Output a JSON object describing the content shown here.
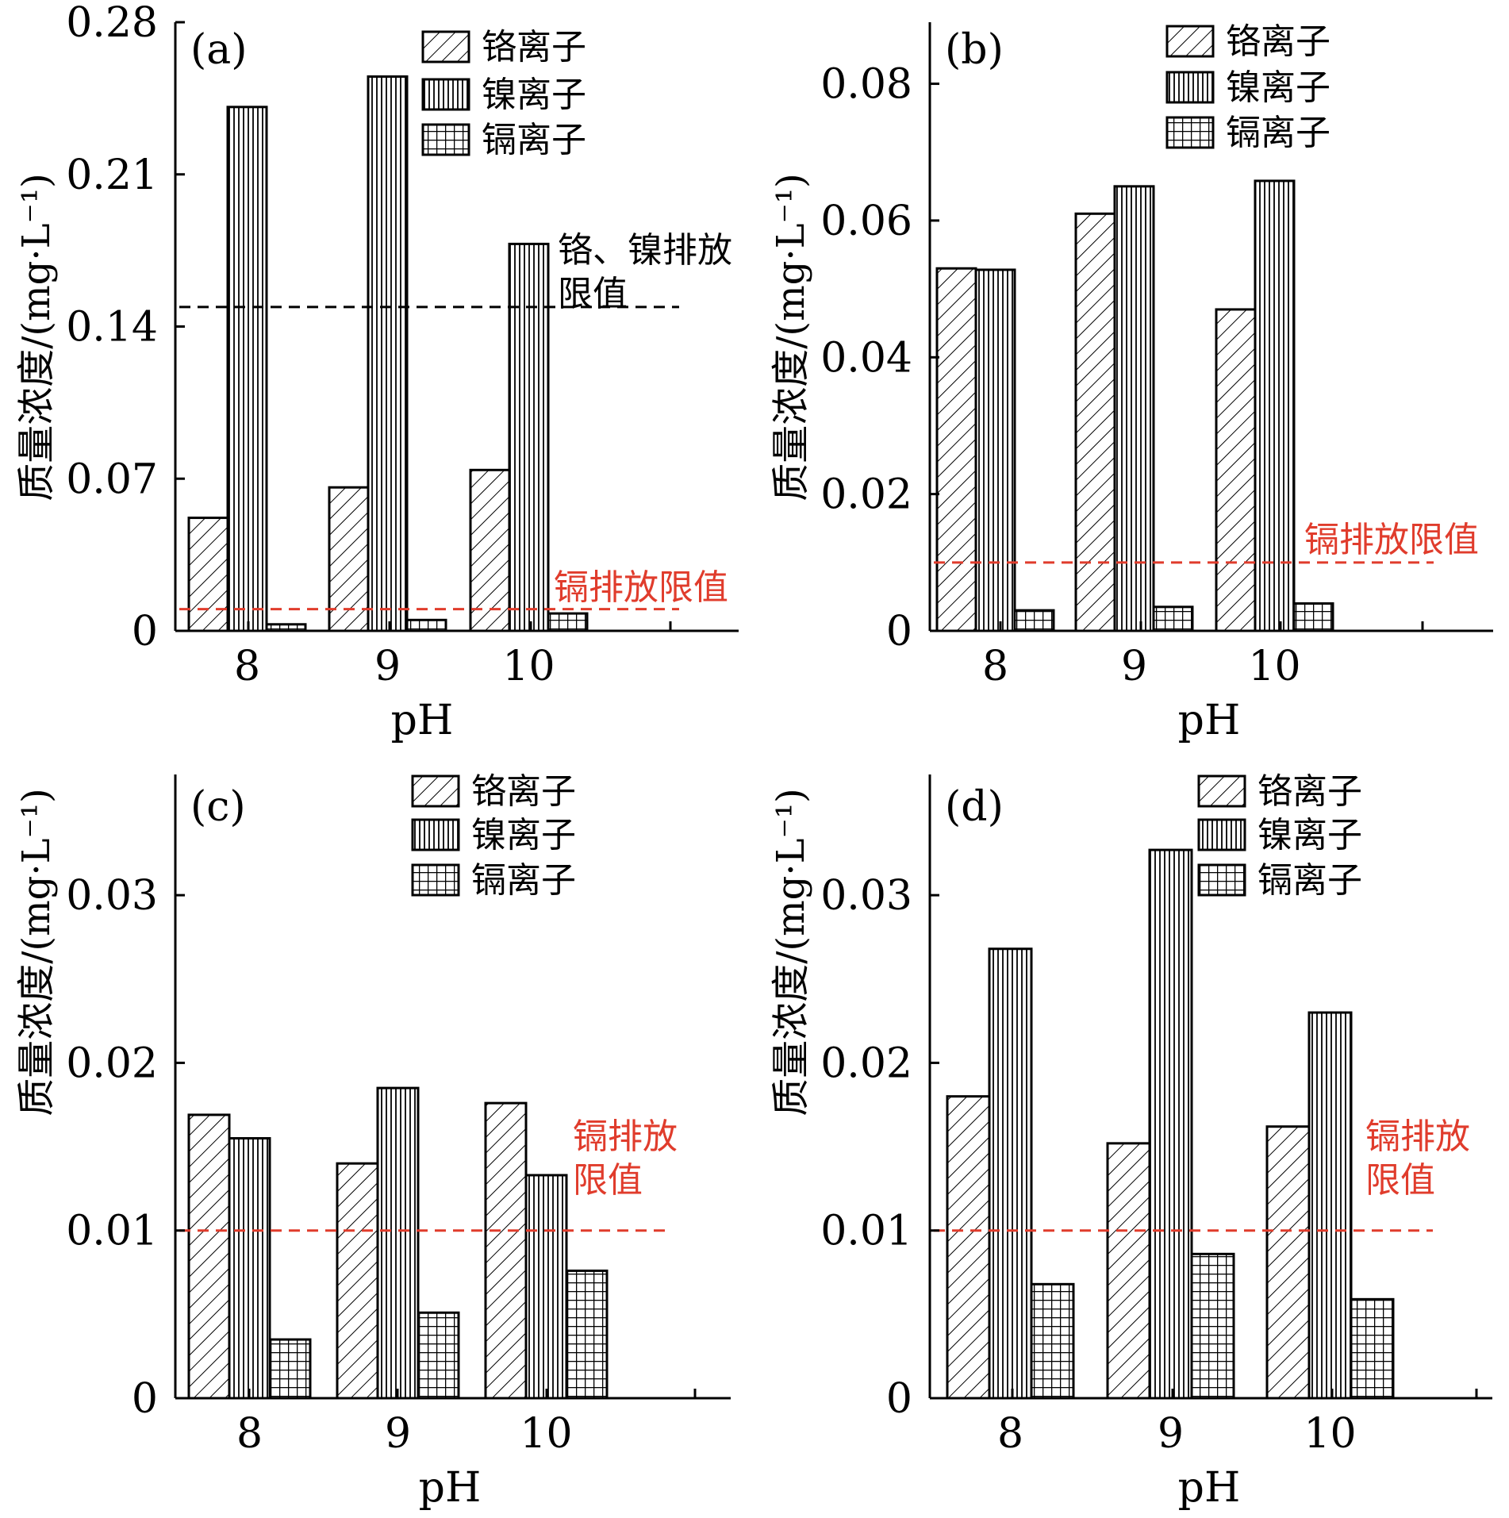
{
  "colors": {
    "axis": "#000000",
    "limit_black": "#000000",
    "limit_red": "#e03c2c",
    "annotation_red": "#e03c2c"
  },
  "legend_labels": [
    "铬离子",
    "镍离子",
    "镉离子"
  ],
  "chart_data": [
    {
      "type": "bar",
      "panel": "(a)",
      "xlabel": "pH",
      "ylabel": "质量浓度/(mg·L⁻¹)",
      "categories": [
        "8",
        "9",
        "10"
      ],
      "ylim": [
        0,
        0.28
      ],
      "yticks": [
        "0",
        "0.07",
        "0.14",
        "0.21",
        "0.28"
      ],
      "series": [
        {
          "name": "铬离子",
          "pattern": "diag",
          "values": [
            0.052,
            0.066,
            0.074
          ]
        },
        {
          "name": "镍离子",
          "pattern": "vert",
          "values": [
            0.241,
            0.255,
            0.178
          ]
        },
        {
          "name": "镉离子",
          "pattern": "grid",
          "values": [
            0.003,
            0.005,
            0.008
          ]
        }
      ],
      "limits": [
        {
          "value": 0.149,
          "color": "black",
          "label_lines": [
            "铬、镍排放",
            "限值"
          ]
        },
        {
          "value": 0.01,
          "color": "red",
          "label_lines": [
            "镉排放限值"
          ]
        }
      ]
    },
    {
      "type": "bar",
      "panel": "(b)",
      "xlabel": "pH",
      "ylabel": "质量浓度/(mg·L⁻¹)",
      "categories": [
        "8",
        "9",
        "10"
      ],
      "ylim": [
        0,
        0.089
      ],
      "yticks": [
        "0",
        "0.02",
        "0.04",
        "0.06",
        "0.08"
      ],
      "series": [
        {
          "name": "铬离子",
          "pattern": "diag",
          "values": [
            0.053,
            0.061,
            0.047
          ]
        },
        {
          "name": "镍离子",
          "pattern": "vert",
          "values": [
            0.0528,
            0.065,
            0.0658
          ]
        },
        {
          "name": "镉离子",
          "pattern": "grid",
          "values": [
            0.003,
            0.0035,
            0.004
          ]
        }
      ],
      "limits": [
        {
          "value": 0.01,
          "color": "red",
          "label_lines": [
            "镉排放限值"
          ]
        }
      ]
    },
    {
      "type": "bar",
      "panel": "(c)",
      "xlabel": "pH",
      "ylabel": "质量浓度/(mg·L⁻¹)",
      "categories": [
        "8",
        "9",
        "10"
      ],
      "ylim": [
        0,
        0.0372
      ],
      "yticks": [
        "0",
        "0.01",
        "0.02",
        "0.03"
      ],
      "series": [
        {
          "name": "铬离子",
          "pattern": "diag",
          "values": [
            0.0169,
            0.014,
            0.0176
          ]
        },
        {
          "name": "镍离子",
          "pattern": "vert",
          "values": [
            0.0155,
            0.0185,
            0.0133
          ]
        },
        {
          "name": "镉离子",
          "pattern": "grid",
          "values": [
            0.0035,
            0.0051,
            0.0076
          ]
        }
      ],
      "limits": [
        {
          "value": 0.01,
          "color": "red",
          "label_lines": [
            "镉排放",
            "限值"
          ]
        }
      ]
    },
    {
      "type": "bar",
      "panel": "(d)",
      "xlabel": "pH",
      "ylabel": "质量浓度/(mg·L⁻¹)",
      "categories": [
        "8",
        "9",
        "10"
      ],
      "ylim": [
        0,
        0.0372
      ],
      "yticks": [
        "0",
        "0.01",
        "0.02",
        "0.03"
      ],
      "series": [
        {
          "name": "铬离子",
          "pattern": "diag",
          "values": [
            0.018,
            0.0152,
            0.0162
          ]
        },
        {
          "name": "镍离子",
          "pattern": "vert",
          "values": [
            0.0268,
            0.0327,
            0.023
          ]
        },
        {
          "name": "镉离子",
          "pattern": "grid",
          "values": [
            0.0068,
            0.0086,
            0.0059
          ]
        }
      ],
      "limits": [
        {
          "value": 0.01,
          "color": "red",
          "label_lines": [
            "镉排放",
            "限值"
          ]
        }
      ]
    }
  ]
}
